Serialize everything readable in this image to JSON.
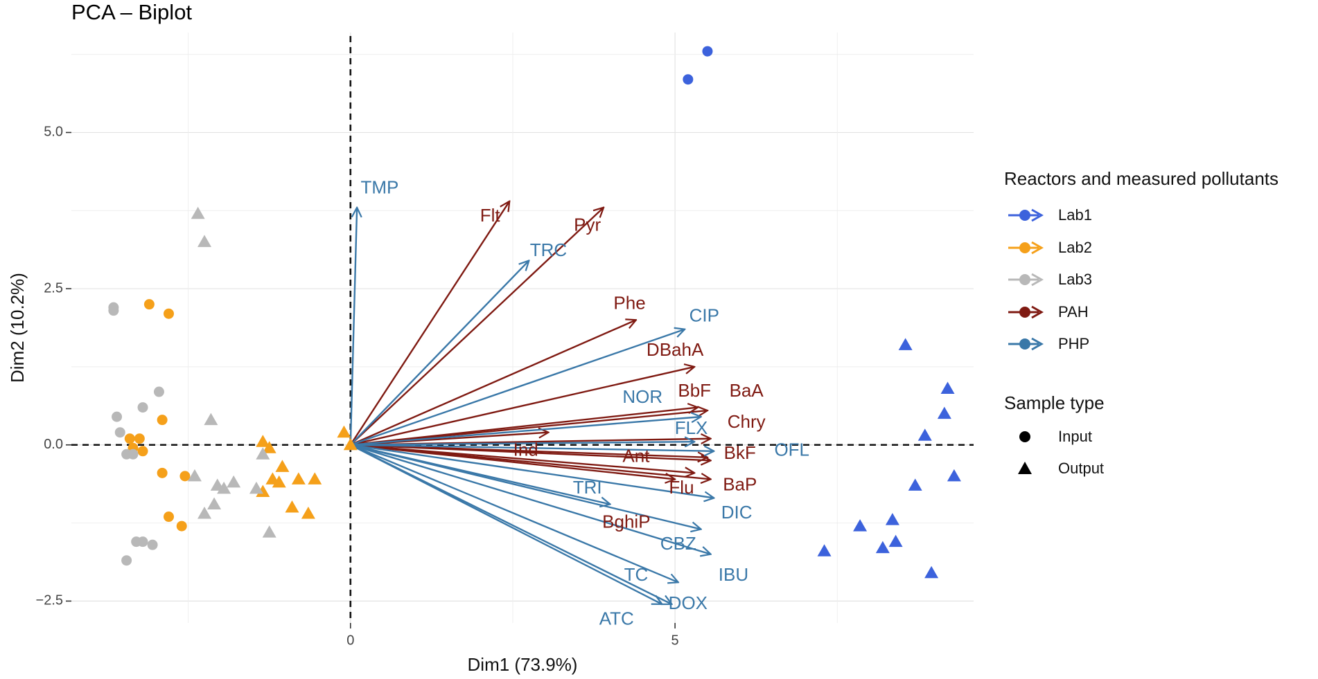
{
  "chart_data": {
    "type": "scatter",
    "title": "PCA – Biplot",
    "xlabel": "Dim1 (73.9%)",
    "ylabel": "Dim2 (10.2%)",
    "xlim": [
      -4.3,
      9.6
    ],
    "ylim": [
      -2.85,
      6.6
    ],
    "x_ticks": [
      0,
      5
    ],
    "x_tick_labels": [
      "0",
      "5"
    ],
    "y_ticks": [
      -2.5,
      0.0,
      2.5,
      5.0
    ],
    "y_tick_labels": [
      "−2.5",
      "0.0",
      "2.5",
      "5.0"
    ],
    "grid": true,
    "reference_lines": {
      "x": 0,
      "y": 0,
      "style": "dashed"
    },
    "colors": {
      "Lab1": "#3c62dc",
      "Lab2": "#f5a01a",
      "Lab3": "#b8b8b8",
      "PAH": "#7f1a12",
      "PHP": "#3a78a8"
    },
    "legend": {
      "title": "Reactors and measured pollutants",
      "items": [
        "Lab1",
        "Lab2",
        "Lab3",
        "PAH",
        "PHP"
      ],
      "shape_title": "Sample type",
      "shape_items": [
        "Input",
        "Output"
      ]
    },
    "points": [
      {
        "group": "Lab1",
        "type": "Input",
        "x": 5.5,
        "y": 6.3
      },
      {
        "group": "Lab1",
        "type": "Input",
        "x": 5.2,
        "y": 5.85
      },
      {
        "group": "Lab1",
        "type": "Output",
        "x": 8.55,
        "y": 1.6
      },
      {
        "group": "Lab1",
        "type": "Output",
        "x": 8.85,
        "y": 0.15
      },
      {
        "group": "Lab1",
        "type": "Output",
        "x": 9.2,
        "y": 0.9
      },
      {
        "group": "Lab1",
        "type": "Output",
        "x": 9.15,
        "y": 0.5
      },
      {
        "group": "Lab1",
        "type": "Output",
        "x": 9.3,
        "y": -0.5
      },
      {
        "group": "Lab1",
        "type": "Output",
        "x": 8.7,
        "y": -0.65
      },
      {
        "group": "Lab1",
        "type": "Output",
        "x": 8.35,
        "y": -1.2
      },
      {
        "group": "Lab1",
        "type": "Output",
        "x": 7.85,
        "y": -1.3
      },
      {
        "group": "Lab1",
        "type": "Output",
        "x": 8.2,
        "y": -1.65
      },
      {
        "group": "Lab1",
        "type": "Output",
        "x": 8.4,
        "y": -1.55
      },
      {
        "group": "Lab1",
        "type": "Output",
        "x": 7.3,
        "y": -1.7
      },
      {
        "group": "Lab1",
        "type": "Output",
        "x": 8.95,
        "y": -2.05
      },
      {
        "group": "Lab2",
        "type": "Input",
        "x": -3.1,
        "y": 2.25
      },
      {
        "group": "Lab2",
        "type": "Input",
        "x": -2.8,
        "y": 2.1
      },
      {
        "group": "Lab2",
        "type": "Input",
        "x": -2.9,
        "y": 0.4
      },
      {
        "group": "Lab2",
        "type": "Input",
        "x": -3.4,
        "y": 0.1
      },
      {
        "group": "Lab2",
        "type": "Input",
        "x": -3.25,
        "y": 0.1
      },
      {
        "group": "Lab2",
        "type": "Input",
        "x": -3.35,
        "y": -0.05
      },
      {
        "group": "Lab2",
        "type": "Input",
        "x": -3.2,
        "y": -0.1
      },
      {
        "group": "Lab2",
        "type": "Input",
        "x": -2.9,
        "y": -0.45
      },
      {
        "group": "Lab2",
        "type": "Input",
        "x": -2.55,
        "y": -0.5
      },
      {
        "group": "Lab2",
        "type": "Input",
        "x": -2.8,
        "y": -1.15
      },
      {
        "group": "Lab2",
        "type": "Input",
        "x": -2.6,
        "y": -1.3
      },
      {
        "group": "Lab2",
        "type": "Output",
        "x": -0.1,
        "y": 0.2
      },
      {
        "group": "Lab2",
        "type": "Output",
        "x": 0.0,
        "y": 0.0
      },
      {
        "group": "Lab2",
        "type": "Output",
        "x": -1.35,
        "y": 0.05
      },
      {
        "group": "Lab2",
        "type": "Output",
        "x": -1.25,
        "y": -0.05
      },
      {
        "group": "Lab2",
        "type": "Output",
        "x": -1.05,
        "y": -0.35
      },
      {
        "group": "Lab2",
        "type": "Output",
        "x": -1.2,
        "y": -0.55
      },
      {
        "group": "Lab2",
        "type": "Output",
        "x": -1.1,
        "y": -0.6
      },
      {
        "group": "Lab2",
        "type": "Output",
        "x": -1.35,
        "y": -0.75
      },
      {
        "group": "Lab2",
        "type": "Output",
        "x": -0.8,
        "y": -0.55
      },
      {
        "group": "Lab2",
        "type": "Output",
        "x": -0.55,
        "y": -0.55
      },
      {
        "group": "Lab2",
        "type": "Output",
        "x": -0.9,
        "y": -1.0
      },
      {
        "group": "Lab2",
        "type": "Output",
        "x": -0.65,
        "y": -1.1
      },
      {
        "group": "Lab3",
        "type": "Input",
        "x": -3.65,
        "y": 2.2
      },
      {
        "group": "Lab3",
        "type": "Input",
        "x": -3.65,
        "y": 2.15
      },
      {
        "group": "Lab3",
        "type": "Input",
        "x": -2.95,
        "y": 0.85
      },
      {
        "group": "Lab3",
        "type": "Input",
        "x": -3.2,
        "y": 0.6
      },
      {
        "group": "Lab3",
        "type": "Input",
        "x": -3.6,
        "y": 0.45
      },
      {
        "group": "Lab3",
        "type": "Input",
        "x": -3.55,
        "y": 0.2
      },
      {
        "group": "Lab3",
        "type": "Input",
        "x": -3.45,
        "y": -0.15
      },
      {
        "group": "Lab3",
        "type": "Input",
        "x": -3.35,
        "y": -0.15
      },
      {
        "group": "Lab3",
        "type": "Input",
        "x": -3.3,
        "y": -1.55
      },
      {
        "group": "Lab3",
        "type": "Input",
        "x": -3.2,
        "y": -1.55
      },
      {
        "group": "Lab3",
        "type": "Input",
        "x": -3.05,
        "y": -1.6
      },
      {
        "group": "Lab3",
        "type": "Input",
        "x": -3.45,
        "y": -1.85
      },
      {
        "group": "Lab3",
        "type": "Output",
        "x": -2.35,
        "y": 3.7
      },
      {
        "group": "Lab3",
        "type": "Output",
        "x": -2.25,
        "y": 3.25
      },
      {
        "group": "Lab3",
        "type": "Output",
        "x": -2.15,
        "y": 0.4
      },
      {
        "group": "Lab3",
        "type": "Output",
        "x": -1.35,
        "y": -0.15
      },
      {
        "group": "Lab3",
        "type": "Output",
        "x": -2.4,
        "y": -0.5
      },
      {
        "group": "Lab3",
        "type": "Output",
        "x": -2.05,
        "y": -0.65
      },
      {
        "group": "Lab3",
        "type": "Output",
        "x": -1.95,
        "y": -0.7
      },
      {
        "group": "Lab3",
        "type": "Output",
        "x": -1.8,
        "y": -0.6
      },
      {
        "group": "Lab3",
        "type": "Output",
        "x": -1.45,
        "y": -0.7
      },
      {
        "group": "Lab3",
        "type": "Output",
        "x": -2.1,
        "y": -0.95
      },
      {
        "group": "Lab3",
        "type": "Output",
        "x": -2.25,
        "y": -1.1
      },
      {
        "group": "Lab3",
        "type": "Output",
        "x": -1.25,
        "y": -1.4
      }
    ],
    "vectors": [
      {
        "name": "Flt",
        "group": "PAH",
        "x": 2.45,
        "y": 3.9,
        "lx": 2.15,
        "ly": 3.65
      },
      {
        "name": "Pyr",
        "group": "PAH",
        "x": 3.9,
        "y": 3.8,
        "lx": 3.65,
        "ly": 3.5
      },
      {
        "name": "Phe",
        "group": "PAH",
        "x": 4.4,
        "y": 2.0,
        "lx": 4.3,
        "ly": 2.25
      },
      {
        "name": "DBahA",
        "group": "PAH",
        "x": 5.3,
        "y": 1.25,
        "lx": 5.0,
        "ly": 1.5
      },
      {
        "name": "BbF",
        "group": "PAH",
        "x": 5.35,
        "y": 0.6,
        "lx": 5.3,
        "ly": 0.85
      },
      {
        "name": "BaA",
        "group": "PAH",
        "x": 5.5,
        "y": 0.55,
        "lx": 6.1,
        "ly": 0.85
      },
      {
        "name": "Chry",
        "group": "PAH",
        "x": 5.55,
        "y": 0.1,
        "lx": 6.1,
        "ly": 0.35
      },
      {
        "name": "Ind",
        "group": "PAH",
        "x": 3.05,
        "y": 0.2,
        "lx": 2.7,
        "ly": -0.1
      },
      {
        "name": "Ant",
        "group": "PAH",
        "x": 5.5,
        "y": -0.2,
        "lx": 4.4,
        "ly": -0.2
      },
      {
        "name": "BkF",
        "group": "PAH",
        "x": 5.55,
        "y": -0.25,
        "lx": 6.0,
        "ly": -0.15
      },
      {
        "name": "Flu",
        "group": "PAH",
        "x": 5.3,
        "y": -0.45,
        "lx": 5.1,
        "ly": -0.7
      },
      {
        "name": "BaP",
        "group": "PAH",
        "x": 5.55,
        "y": -0.55,
        "lx": 6.0,
        "ly": -0.65
      },
      {
        "name": "BghiP",
        "group": "PAH",
        "x": 5.0,
        "y": -0.55,
        "lx": 4.25,
        "ly": -1.25
      },
      {
        "name": "TMP",
        "group": "PHP",
        "x": 0.1,
        "y": 3.8,
        "lx": 0.45,
        "ly": 4.1
      },
      {
        "name": "TRC",
        "group": "PHP",
        "x": 2.75,
        "y": 2.95,
        "lx": 3.05,
        "ly": 3.1
      },
      {
        "name": "CIP",
        "group": "PHP",
        "x": 5.15,
        "y": 1.85,
        "lx": 5.45,
        "ly": 2.05
      },
      {
        "name": "NOR",
        "group": "PHP",
        "x": 5.4,
        "y": 0.45,
        "lx": 4.5,
        "ly": 0.75
      },
      {
        "name": "FLX",
        "group": "PHP",
        "x": 5.3,
        "y": 0.05,
        "lx": 5.25,
        "ly": 0.25
      },
      {
        "name": "OFL",
        "group": "PHP",
        "x": 5.6,
        "y": -0.1,
        "lx": 6.8,
        "ly": -0.1
      },
      {
        "name": "TRI",
        "group": "PHP",
        "x": 4.0,
        "y": -0.95,
        "lx": 3.65,
        "ly": -0.7
      },
      {
        "name": "DIC",
        "group": "PHP",
        "x": 5.6,
        "y": -0.85,
        "lx": 5.95,
        "ly": -1.1
      },
      {
        "name": "CBZ",
        "group": "PHP",
        "x": 5.4,
        "y": -1.35,
        "lx": 5.05,
        "ly": -1.6
      },
      {
        "name": "IBU",
        "group": "PHP",
        "x": 5.55,
        "y": -1.75,
        "lx": 5.9,
        "ly": -2.1
      },
      {
        "name": "TC",
        "group": "PHP",
        "x": 5.05,
        "y": -2.2,
        "lx": 4.4,
        "ly": -2.1
      },
      {
        "name": "DOX",
        "group": "PHP",
        "x": 4.95,
        "y": -2.55,
        "lx": 5.2,
        "ly": -2.55
      },
      {
        "name": "ATC",
        "group": "PHP",
        "x": 4.8,
        "y": -2.55,
        "lx": 4.1,
        "ly": -2.8
      }
    ]
  }
}
